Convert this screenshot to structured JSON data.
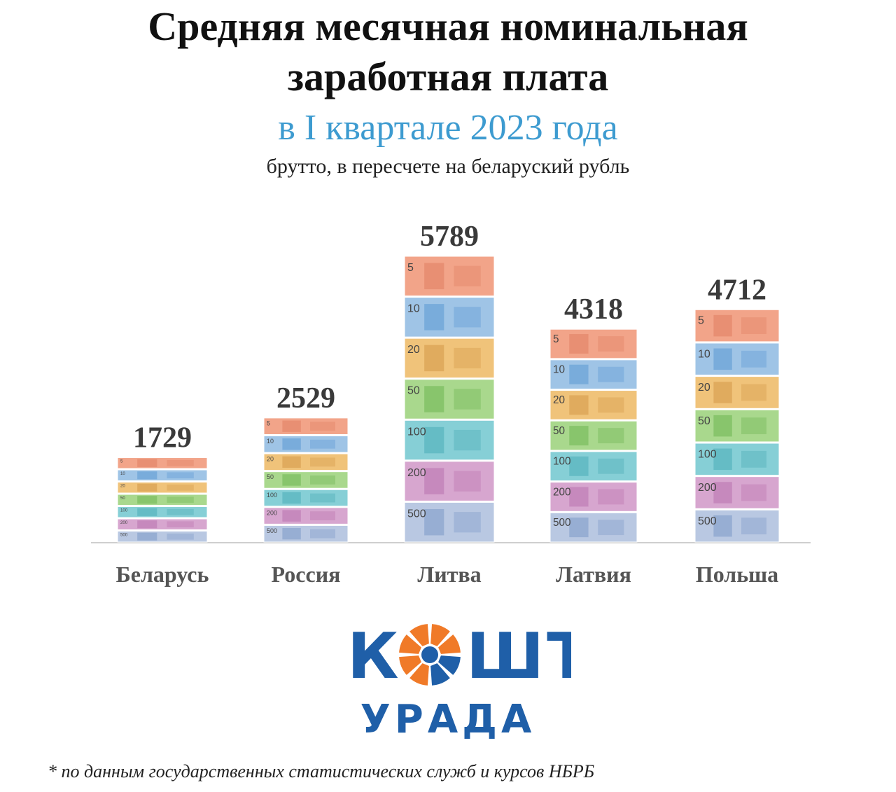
{
  "header": {
    "title_line1": "Средняя месячная номинальная",
    "title_line2": "заработная плата",
    "subtitle": "в I квартале 2023 года",
    "note": "брутто, в пересчете на беларуский рубль"
  },
  "colors": {
    "subtitle": "#3d9bd0",
    "labels": "#555555",
    "values": "#3a3a3a",
    "logo_blue": "#1f5fa8",
    "logo_orange": "#f07a28",
    "axis": "#cfcfcf"
  },
  "chart_data": {
    "type": "bar",
    "categories": [
      "Беларусь",
      "Россия",
      "Литва",
      "Латвия",
      "Польша"
    ],
    "values": [
      1729,
      2529,
      5789,
      4318,
      4712
    ],
    "data_labels": [
      "1729",
      "2529",
      "5789",
      "4318",
      "4712"
    ],
    "bar_style": "stacked banknotes (denominations 5, 10, 20, 50, 100, 200, 500)",
    "denominations": [
      "5",
      "10",
      "20",
      "50",
      "100",
      "200",
      "500"
    ],
    "grid": false,
    "legend": "none"
  },
  "logo": {
    "top_text": "КОШТ",
    "bottom_text": "УРАДА"
  },
  "footnote": "* по данным государственных статистических служб и курсов НБРБ"
}
